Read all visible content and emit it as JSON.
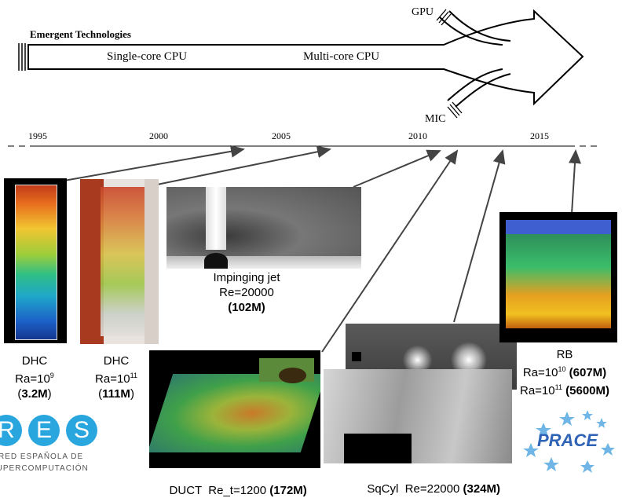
{
  "header": {
    "title": "Emergent Technologies"
  },
  "arrow": {
    "label_single": "Single-core CPU",
    "label_multi": "Multi-core CPU",
    "label_gpu": "GPU",
    "label_mic": "MIC"
  },
  "timeline": {
    "years": [
      "1995",
      "2000",
      "2005",
      "2010",
      "2015"
    ]
  },
  "cases": {
    "dhc1": {
      "name": "DHC",
      "ra_base": "Ra=10",
      "ra_exp": "9",
      "mesh": "3.2M",
      "lp": "(",
      "rp": ")"
    },
    "dhc2": {
      "name": "DHC",
      "ra_base": "Ra=10",
      "ra_exp": "11",
      "mesh": "111M",
      "lp": "(",
      "rp": ")"
    },
    "jet": {
      "name": "Impinging jet",
      "re": "Re=20000",
      "mesh": "(102M)"
    },
    "duct": {
      "name": "DUCT  Re_t=1200",
      "mesh": "(172M)"
    },
    "sqcyl": {
      "name": "SqCyl  Re=22000",
      "mesh": "(324M)"
    },
    "rb": {
      "name": "RB",
      "ra1_base": "Ra=10",
      "ra1_exp": "10",
      "ra1_mesh": "(607M)",
      "ra2_base": "Ra=10",
      "ra2_exp": "11",
      "ra2_mesh": "(5600M)"
    }
  },
  "logos": {
    "res_letters": [
      "R",
      "E",
      "S"
    ],
    "res_line1": "RED ESPAÑOLA DE",
    "res_line2": "SUPERCOMPUTACIÓN",
    "prace": "PRACE"
  },
  "colors": {
    "res_blue": "#2aa6df",
    "prace_blue": "#2f63b5",
    "prace_star": "#6fb6e6"
  }
}
